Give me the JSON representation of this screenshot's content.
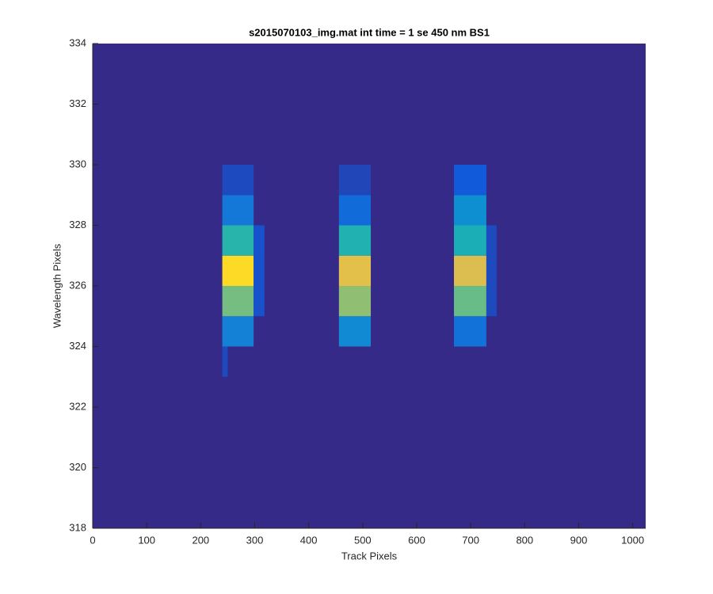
{
  "chart_data": {
    "type": "heatmap",
    "title": "s2015070103_img.mat int time = 1 se  450 nm BS1",
    "x_label": "Track Pixels",
    "y_label": "Wavelength Pixels",
    "xlim": [
      0,
      1024
    ],
    "ylim": [
      318,
      334
    ],
    "xticks": [
      0,
      100,
      200,
      300,
      400,
      500,
      600,
      700,
      800,
      900,
      1000
    ],
    "yticks": [
      318,
      320,
      322,
      324,
      326,
      328,
      330,
      332,
      334
    ],
    "clim": [
      0,
      1
    ],
    "colormap": [
      "#352a87",
      "#0f5cdd",
      "#1481d6",
      "#06a4ca",
      "#2eb7a4",
      "#87bf77",
      "#d1bb59",
      "#fec832",
      "#f9fb0e"
    ],
    "cells": [
      {
        "x": [
          240,
          298
        ],
        "y": [
          324,
          325
        ],
        "value": 0.25
      },
      {
        "x": [
          240,
          298
        ],
        "y": [
          325,
          326
        ],
        "value": 0.6
      },
      {
        "x": [
          240,
          298
        ],
        "y": [
          326,
          327
        ],
        "value": 0.92
      },
      {
        "x": [
          240,
          298
        ],
        "y": [
          327,
          328
        ],
        "value": 0.48
      },
      {
        "x": [
          240,
          298
        ],
        "y": [
          328,
          329
        ],
        "value": 0.22
      },
      {
        "x": [
          240,
          298
        ],
        "y": [
          329,
          330
        ],
        "value": 0.08
      },
      {
        "x": [
          240,
          250
        ],
        "y": [
          323,
          324
        ],
        "value": 0.08
      },
      {
        "x": [
          298,
          318
        ],
        "y": [
          325,
          328
        ],
        "value": 0.1
      },
      {
        "x": [
          456,
          515
        ],
        "y": [
          324,
          325
        ],
        "value": 0.28
      },
      {
        "x": [
          456,
          515
        ],
        "y": [
          325,
          326
        ],
        "value": 0.64
      },
      {
        "x": [
          456,
          515
        ],
        "y": [
          326,
          327
        ],
        "value": 0.8
      },
      {
        "x": [
          456,
          515
        ],
        "y": [
          327,
          328
        ],
        "value": 0.46
      },
      {
        "x": [
          456,
          515
        ],
        "y": [
          328,
          329
        ],
        "value": 0.18
      },
      {
        "x": [
          456,
          515
        ],
        "y": [
          329,
          330
        ],
        "value": 0.07
      },
      {
        "x": [
          669,
          729
        ],
        "y": [
          324,
          325
        ],
        "value": 0.2
      },
      {
        "x": [
          669,
          729
        ],
        "y": [
          325,
          326
        ],
        "value": 0.58
      },
      {
        "x": [
          669,
          729
        ],
        "y": [
          326,
          327
        ],
        "value": 0.78
      },
      {
        "x": [
          669,
          729
        ],
        "y": [
          327,
          328
        ],
        "value": 0.44
      },
      {
        "x": [
          669,
          729
        ],
        "y": [
          328,
          329
        ],
        "value": 0.3
      },
      {
        "x": [
          669,
          729
        ],
        "y": [
          329,
          330
        ],
        "value": 0.12
      },
      {
        "x": [
          729,
          748
        ],
        "y": [
          325,
          328
        ],
        "value": 0.08
      }
    ]
  }
}
